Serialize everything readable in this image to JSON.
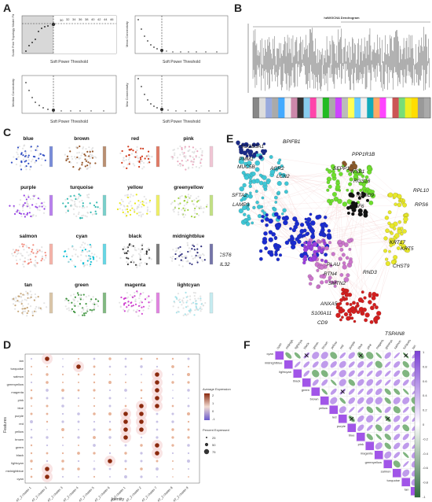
{
  "panels": {
    "A": {
      "label": "A",
      "plots": [
        {
          "ylabel": "Scale Free Topology Model Fit",
          "xlabel": "Soft Power Threshold",
          "yticks": [
            "0.2",
            "0.4",
            "0.6",
            "0.8"
          ],
          "xticks": [
            "0",
            "10",
            "20",
            "30"
          ]
        },
        {
          "ylabel": "Mean Connectivity",
          "xlabel": "Soft Power Threshold",
          "yticks": [
            "0",
            "1000",
            "2000",
            "3000",
            "4000"
          ],
          "xticks": [
            "0",
            "10",
            "20",
            "30"
          ]
        },
        {
          "ylabel": "Median Connectivity",
          "xlabel": "Soft Power Threshold",
          "yticks": [
            "0",
            "1000",
            "2000"
          ],
          "xticks": [
            "0",
            "10",
            "20",
            "30"
          ]
        },
        {
          "ylabel": "Max Connectivity",
          "xlabel": "Soft Power Threshold",
          "yticks": [
            "0",
            "2000",
            "4000",
            "6000"
          ],
          "xticks": [
            "0",
            "10",
            "20",
            "30"
          ]
        }
      ]
    },
    "B": {
      "label": "B",
      "title": "hdWGCNA Dendrogram"
    },
    "C": {
      "label": "C",
      "modules": [
        "blue",
        "brown",
        "red",
        "pink",
        "purple",
        "turquoise",
        "yellow",
        "greenyellow",
        "salmon",
        "cyan",
        "black",
        "midnightblue",
        "tan",
        "green",
        "magenta",
        "lightcyan"
      ],
      "colors": [
        "#1f3fbf",
        "#8b4513",
        "#cc2200",
        "#e8a0b8",
        "#8a2be2",
        "#20b2aa",
        "#e6e600",
        "#9acd32",
        "#f08070",
        "#00bcd4",
        "#222222",
        "#191970",
        "#c2a070",
        "#2e8b2e",
        "#cc33cc",
        "#a0e0e8"
      ]
    },
    "D": {
      "label": "D",
      "features": [
        "tan",
        "turquoise",
        "salmon",
        "greenyellow",
        "magenta",
        "pink",
        "blue",
        "purple",
        "red",
        "yellow",
        "brown",
        "green",
        "black",
        "lightcyan",
        "midnightblue",
        "cyan"
      ],
      "identities": [
        "AT_2 cluster 1",
        "AT_2 cluster 2",
        "AT_2 cluster 3",
        "AT_2 cluster 4",
        "AT_2 cluster 5",
        "AT_2 cluster 6",
        "IR_AT_2 cluster 1",
        "IR_AT_2 cluster 2",
        "AT_2 cluster 7",
        "AT_2 cluster 8",
        "AT_2 cluster 9"
      ],
      "xlabel": "Identity",
      "ylabel": "Features",
      "legend_expr_title": "Average Expression",
      "legend_expr_ticks": [
        "2",
        "1",
        "0",
        "-1"
      ],
      "legend_pct_title": "Percent Expressed",
      "legend_pct_ticks": [
        "25",
        "50",
        "75"
      ]
    },
    "E": {
      "label": "E",
      "genes": [
        "SCGB3A1",
        "BPIFB1",
        "PMM1",
        "AGR2",
        "MUC5B",
        "LCN2",
        "SFTA2",
        "LAMP3",
        "PPP1R1B",
        "SEPP1",
        "WSB1",
        "RGS16",
        "NEDD9",
        "KLF6",
        "RPL10",
        "RPS6",
        "KRT17",
        "KRT5",
        "CHST9",
        "CST6",
        "IL32",
        "PLAU",
        "RTN4",
        "SMTN2",
        "RND3",
        "ANXA5",
        "S100A11",
        "CD9",
        "TSPAN8"
      ]
    },
    "F": {
      "label": "F",
      "modules": [
        "cyan",
        "midnightblue",
        "lightcyan",
        "black",
        "green",
        "brown",
        "yellow",
        "red",
        "purple",
        "blue",
        "pink",
        "magenta",
        "greenyellow",
        "salmon",
        "turquoise",
        "tan"
      ],
      "colorbar_ticks": [
        "1",
        "0.8",
        "0.6",
        "0.4",
        "0.2",
        "0",
        "-0.2",
        "-0.4",
        "-0.6",
        "-0.8",
        "-1"
      ]
    }
  }
}
